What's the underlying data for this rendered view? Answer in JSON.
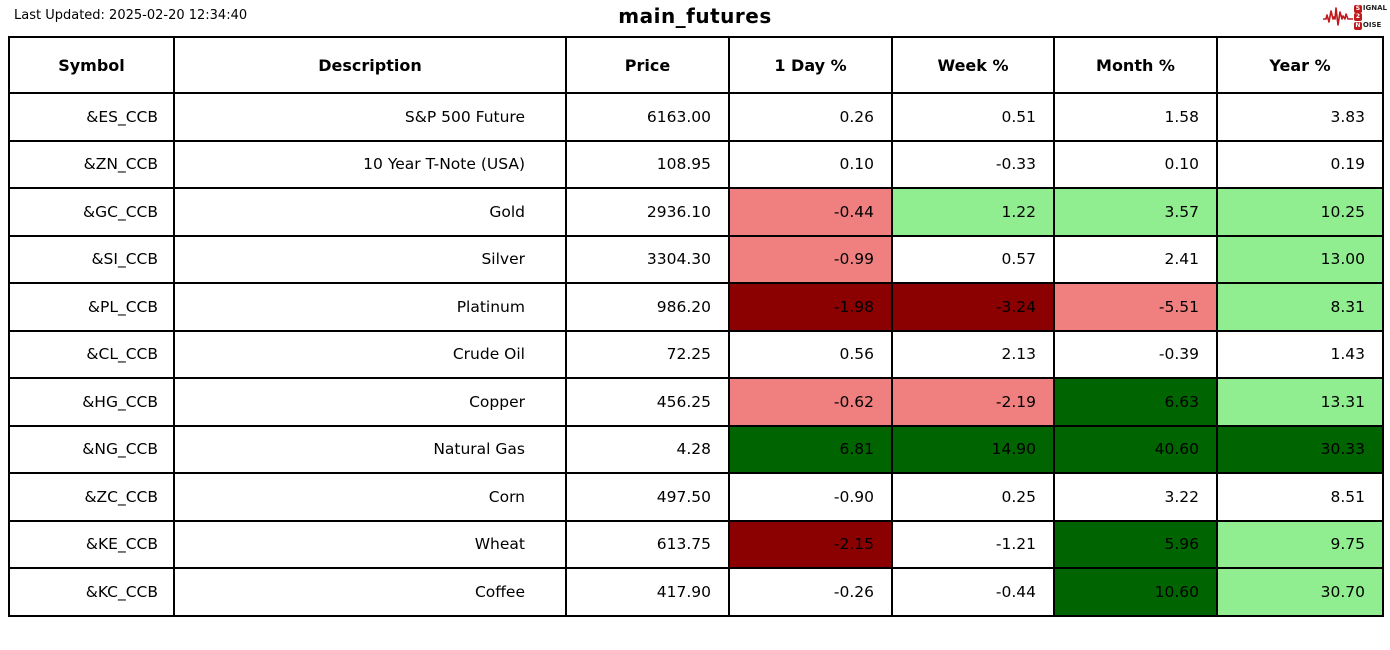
{
  "meta": {
    "last_updated": "Last Updated: 2025-02-20 12:34:40",
    "title": "main_futures"
  },
  "logo": {
    "s": "S",
    "ignal": "IGNAL",
    "two": "2",
    "n": "N",
    "oise": "OISE",
    "accent_color": "#c0191c"
  },
  "colors": {
    "none": "#ffffff",
    "light_red": "#f08080",
    "light_green": "#90ee90",
    "dark_red": "#8b0000",
    "dark_green": "#006400"
  },
  "table": {
    "columns": [
      "Symbol",
      "Description",
      "Price",
      "1 Day %",
      "Week %",
      "Month %",
      "Year %"
    ],
    "rows": [
      {
        "symbol": "&ES_CCB",
        "description": "S&P 500 Future",
        "price": "6163.00",
        "day": "0.26",
        "week": "0.51",
        "month": "1.58",
        "year": "3.83",
        "day_color": "none",
        "week_color": "none",
        "month_color": "none",
        "year_color": "none"
      },
      {
        "symbol": "&ZN_CCB",
        "description": "10 Year T-Note (USA)",
        "price": "108.95",
        "day": "0.10",
        "week": "-0.33",
        "month": "0.10",
        "year": "0.19",
        "day_color": "none",
        "week_color": "none",
        "month_color": "none",
        "year_color": "none"
      },
      {
        "symbol": "&GC_CCB",
        "description": "Gold",
        "price": "2936.10",
        "day": "-0.44",
        "week": "1.22",
        "month": "3.57",
        "year": "10.25",
        "day_color": "light_red",
        "week_color": "light_green",
        "month_color": "light_green",
        "year_color": "light_green"
      },
      {
        "symbol": "&SI_CCB",
        "description": "Silver",
        "price": "3304.30",
        "day": "-0.99",
        "week": "0.57",
        "month": "2.41",
        "year": "13.00",
        "day_color": "light_red",
        "week_color": "none",
        "month_color": "none",
        "year_color": "light_green"
      },
      {
        "symbol": "&PL_CCB",
        "description": "Platinum",
        "price": "986.20",
        "day": "-1.98",
        "week": "-3.24",
        "month": "-5.51",
        "year": "8.31",
        "day_color": "dark_red",
        "week_color": "dark_red",
        "month_color": "light_red",
        "year_color": "light_green"
      },
      {
        "symbol": "&CL_CCB",
        "description": "Crude Oil",
        "price": "72.25",
        "day": "0.56",
        "week": "2.13",
        "month": "-0.39",
        "year": "1.43",
        "day_color": "none",
        "week_color": "none",
        "month_color": "none",
        "year_color": "none"
      },
      {
        "symbol": "&HG_CCB",
        "description": "Copper",
        "price": "456.25",
        "day": "-0.62",
        "week": "-2.19",
        "month": "6.63",
        "year": "13.31",
        "day_color": "light_red",
        "week_color": "light_red",
        "month_color": "dark_green",
        "year_color": "light_green"
      },
      {
        "symbol": "&NG_CCB",
        "description": "Natural Gas",
        "price": "4.28",
        "day": "6.81",
        "week": "14.90",
        "month": "40.60",
        "year": "30.33",
        "day_color": "dark_green",
        "week_color": "dark_green",
        "month_color": "dark_green",
        "year_color": "dark_green"
      },
      {
        "symbol": "&ZC_CCB",
        "description": "Corn",
        "price": "497.50",
        "day": "-0.90",
        "week": "0.25",
        "month": "3.22",
        "year": "8.51",
        "day_color": "none",
        "week_color": "none",
        "month_color": "none",
        "year_color": "none"
      },
      {
        "symbol": "&KE_CCB",
        "description": "Wheat",
        "price": "613.75",
        "day": "-2.15",
        "week": "-1.21",
        "month": "5.96",
        "year": "9.75",
        "day_color": "dark_red",
        "week_color": "none",
        "month_color": "dark_green",
        "year_color": "light_green"
      },
      {
        "symbol": "&KC_CCB",
        "description": "Coffee",
        "price": "417.90",
        "day": "-0.26",
        "week": "-0.44",
        "month": "10.60",
        "year": "30.70",
        "day_color": "none",
        "week_color": "none",
        "month_color": "dark_green",
        "year_color": "light_green"
      }
    ]
  }
}
